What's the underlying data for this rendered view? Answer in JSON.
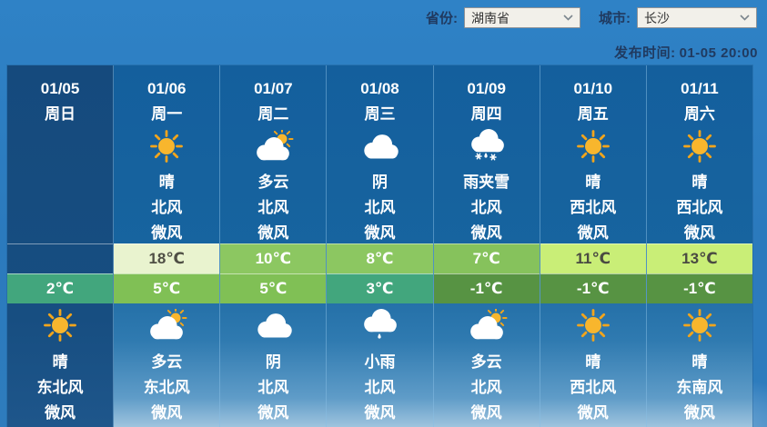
{
  "toolbar": {
    "province_label": "省份:",
    "province_value": "湖南省",
    "city_label": "城市:",
    "city_value": "长沙",
    "publish_label": "发布时间:",
    "publish_value": "01-05 20:00"
  },
  "colors": {
    "sky": "#2e7ec2",
    "column": "#17649f",
    "past_column": "#164d80",
    "sun": "#f8b62d"
  },
  "days": [
    {
      "date": "01/05",
      "weekday": "周日",
      "past": true,
      "day": null,
      "high": null,
      "low": {
        "text": "2℃",
        "bg": "#42a67d",
        "fg": "#ffffff"
      },
      "night": {
        "icon": "sunny",
        "condition": "晴",
        "wind": "东北风",
        "power": "微风"
      }
    },
    {
      "date": "01/06",
      "weekday": "周一",
      "day": {
        "icon": "sunny",
        "condition": "晴",
        "wind": "北风",
        "power": "微风"
      },
      "high": {
        "text": "18℃",
        "bg": "#e9f3cf",
        "fg": "#4f4f45"
      },
      "low": {
        "text": "5℃",
        "bg": "#80c055",
        "fg": "#ffffff"
      },
      "night": {
        "icon": "partly-cloudy",
        "condition": "多云",
        "wind": "东北风",
        "power": "微风"
      }
    },
    {
      "date": "01/07",
      "weekday": "周二",
      "day": {
        "icon": "partly-cloudy",
        "condition": "多云",
        "wind": "北风",
        "power": "微风"
      },
      "high": {
        "text": "10℃",
        "bg": "#8cc761",
        "fg": "#ffffff"
      },
      "low": {
        "text": "5℃",
        "bg": "#80c055",
        "fg": "#ffffff"
      },
      "night": {
        "icon": "overcast",
        "condition": "阴",
        "wind": "北风",
        "power": "微风"
      }
    },
    {
      "date": "01/08",
      "weekday": "周三",
      "day": {
        "icon": "overcast",
        "condition": "阴",
        "wind": "北风",
        "power": "微风"
      },
      "high": {
        "text": "8℃",
        "bg": "#8cc761",
        "fg": "#ffffff"
      },
      "low": {
        "text": "3℃",
        "bg": "#42a67d",
        "fg": "#ffffff"
      },
      "night": {
        "icon": "light-rain",
        "condition": "小雨",
        "wind": "北风",
        "power": "微风"
      }
    },
    {
      "date": "01/09",
      "weekday": "周四",
      "day": {
        "icon": "sleet",
        "condition": "雨夹雪",
        "wind": "北风",
        "power": "微风"
      },
      "high": {
        "text": "7℃",
        "bg": "#86c25c",
        "fg": "#ffffff"
      },
      "low": {
        "text": "-1℃",
        "bg": "#579343",
        "fg": "#ffffff"
      },
      "night": {
        "icon": "partly-cloudy",
        "condition": "多云",
        "wind": "北风",
        "power": "微风"
      }
    },
    {
      "date": "01/10",
      "weekday": "周五",
      "day": {
        "icon": "sunny",
        "condition": "晴",
        "wind": "西北风",
        "power": "微风"
      },
      "high": {
        "text": "11℃",
        "bg": "#c9ee77",
        "fg": "#4a4a42"
      },
      "low": {
        "text": "-1℃",
        "bg": "#579343",
        "fg": "#ffffff"
      },
      "night": {
        "icon": "sunny",
        "condition": "晴",
        "wind": "西北风",
        "power": "微风"
      }
    },
    {
      "date": "01/11",
      "weekday": "周六",
      "day": {
        "icon": "sunny",
        "condition": "晴",
        "wind": "西北风",
        "power": "微风"
      },
      "high": {
        "text": "13℃",
        "bg": "#c9ee77",
        "fg": "#4a4a42"
      },
      "low": {
        "text": "-1℃",
        "bg": "#579343",
        "fg": "#ffffff"
      },
      "night": {
        "icon": "sunny",
        "condition": "晴",
        "wind": "东南风",
        "power": "微风"
      }
    }
  ]
}
